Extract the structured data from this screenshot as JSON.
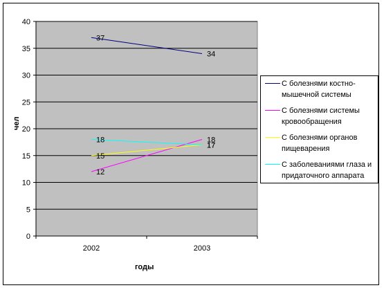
{
  "chart_data": {
    "type": "line",
    "title": "",
    "xlabel": "годы",
    "ylabel": "чел",
    "categories": [
      "2002",
      "2003"
    ],
    "ylim": [
      0,
      40
    ],
    "yticks": [
      "0",
      "5",
      "10",
      "15",
      "20",
      "25",
      "30",
      "35",
      "40"
    ],
    "grid": true,
    "legend_position": "right",
    "series": [
      {
        "name": "С болезнями костно-мышечной системы",
        "values": [
          37,
          34
        ],
        "color": "#000080"
      },
      {
        "name": "С болезнями системы кровообращения",
        "values": [
          12,
          18
        ],
        "color": "#ff00ff"
      },
      {
        "name": "С болезнями органов пищеварения",
        "values": [
          15,
          17
        ],
        "color": "#ffff00"
      },
      {
        "name": "С заболеваниями глаза и придаточного аппарата",
        "values": [
          18,
          17
        ],
        "color": "#00ffff"
      }
    ],
    "data_labels": [
      {
        "series": 0,
        "point": 0,
        "text": "37"
      },
      {
        "series": 0,
        "point": 1,
        "text": "34"
      },
      {
        "series": 1,
        "point": 0,
        "text": "12"
      },
      {
        "series": 1,
        "point": 1,
        "text": "18"
      },
      {
        "series": 2,
        "point": 0,
        "text": "15"
      },
      {
        "series": 2,
        "point": 1,
        "text": "17"
      },
      {
        "series": 3,
        "point": 0,
        "text": "18"
      },
      {
        "series": 3,
        "point": 1,
        "text": "17"
      }
    ],
    "plot_background": "#c0c0c0"
  }
}
